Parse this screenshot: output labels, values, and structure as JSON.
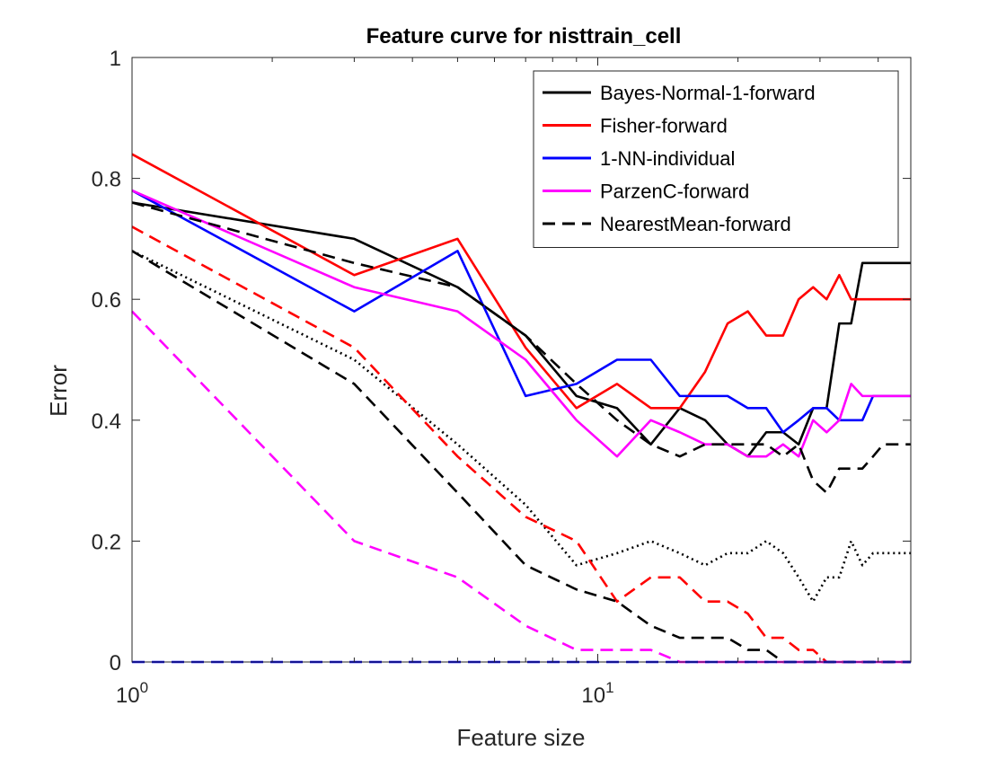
{
  "chart_data": {
    "type": "line",
    "title": "Feature curve for nisttrain_cell",
    "xlabel": "Feature size",
    "ylabel": "Error",
    "xscale": "log",
    "xlim": [
      1,
      47
    ],
    "ylim": [
      0,
      1
    ],
    "x_ticks": [
      {
        "value": 1,
        "base": "10",
        "exp": "0"
      },
      {
        "value": 10,
        "base": "10",
        "exp": "1"
      }
    ],
    "y_ticks": [
      {
        "value": 0,
        "label": "0"
      },
      {
        "value": 0.2,
        "label": "0.2"
      },
      {
        "value": 0.4,
        "label": "0.4"
      },
      {
        "value": 0.6,
        "label": "0.6"
      },
      {
        "value": 0.8,
        "label": "0.8"
      },
      {
        "value": 1,
        "label": "1"
      }
    ],
    "grid": false,
    "legend_position": "top-right",
    "series": [
      {
        "name": "Bayes-Normal-1-forward",
        "color": "#000000",
        "dash": "solid",
        "in_legend": true,
        "x": [
          1,
          3,
          5,
          7,
          9,
          11,
          13,
          15,
          17,
          19,
          21,
          23,
          25,
          27,
          29,
          31,
          33,
          35,
          37,
          39,
          41,
          43,
          45,
          47
        ],
        "y": [
          0.76,
          0.7,
          0.62,
          0.54,
          0.44,
          0.42,
          0.36,
          0.42,
          0.4,
          0.36,
          0.34,
          0.38,
          0.38,
          0.36,
          0.42,
          0.42,
          0.56,
          0.56,
          0.66,
          0.66,
          0.66,
          0.66,
          0.66,
          0.66
        ]
      },
      {
        "name": "Fisher-forward",
        "color": "#ff0000",
        "dash": "solid",
        "in_legend": true,
        "x": [
          1,
          3,
          5,
          7,
          9,
          11,
          13,
          15,
          17,
          19,
          21,
          23,
          25,
          27,
          29,
          31,
          33,
          35,
          37,
          39,
          41,
          43,
          45,
          47
        ],
        "y": [
          0.84,
          0.64,
          0.7,
          0.52,
          0.42,
          0.46,
          0.42,
          0.42,
          0.48,
          0.56,
          0.58,
          0.54,
          0.54,
          0.6,
          0.62,
          0.6,
          0.64,
          0.6,
          0.6,
          0.6,
          0.6,
          0.6,
          0.6,
          0.6
        ]
      },
      {
        "name": "1-NN-individual",
        "color": "#0000ff",
        "dash": "solid",
        "in_legend": true,
        "x": [
          1,
          3,
          5,
          7,
          9,
          11,
          13,
          15,
          17,
          19,
          21,
          23,
          25,
          27,
          29,
          31,
          33,
          35,
          37,
          39,
          41,
          43,
          45,
          47
        ],
        "y": [
          0.78,
          0.58,
          0.68,
          0.44,
          0.46,
          0.5,
          0.5,
          0.44,
          0.44,
          0.44,
          0.42,
          0.42,
          0.38,
          0.4,
          0.42,
          0.42,
          0.4,
          0.4,
          0.4,
          0.44,
          0.44,
          0.44,
          0.44,
          0.44
        ]
      },
      {
        "name": "ParzenC-forward",
        "color": "#ff00ff",
        "dash": "solid",
        "in_legend": true,
        "x": [
          1,
          3,
          5,
          7,
          9,
          11,
          13,
          15,
          17,
          19,
          21,
          23,
          25,
          27,
          29,
          31,
          33,
          35,
          37,
          39,
          41,
          43,
          45,
          47
        ],
        "y": [
          0.78,
          0.62,
          0.58,
          0.5,
          0.4,
          0.34,
          0.4,
          0.38,
          0.36,
          0.36,
          0.34,
          0.34,
          0.36,
          0.34,
          0.4,
          0.38,
          0.4,
          0.46,
          0.44,
          0.44,
          0.44,
          0.44,
          0.44,
          0.44
        ]
      },
      {
        "name": "NearestMean-forward",
        "color": "#000000",
        "dash": "dashed",
        "in_legend": true,
        "x": [
          1,
          3,
          5,
          7,
          9,
          11,
          13,
          15,
          17,
          19,
          21,
          23,
          25,
          27,
          29,
          31,
          33,
          35,
          37,
          39,
          41,
          43,
          45,
          47
        ],
        "y": [
          0.76,
          0.66,
          0.62,
          0.54,
          0.46,
          0.4,
          0.36,
          0.34,
          0.36,
          0.36,
          0.36,
          0.36,
          0.34,
          0.36,
          0.3,
          0.28,
          0.32,
          0.32,
          0.32,
          0.34,
          0.36,
          0.36,
          0.36,
          0.36
        ]
      },
      {
        "name": "",
        "color": "#000000",
        "dash": "dotted",
        "in_legend": false,
        "x": [
          1,
          3,
          5,
          7,
          9,
          11,
          13,
          15,
          17,
          19,
          21,
          23,
          25,
          27,
          29,
          31,
          33,
          35,
          37,
          39,
          41,
          43,
          45,
          47
        ],
        "y": [
          0.68,
          0.5,
          0.36,
          0.26,
          0.16,
          0.18,
          0.2,
          0.18,
          0.16,
          0.18,
          0.18,
          0.2,
          0.18,
          0.14,
          0.1,
          0.14,
          0.14,
          0.2,
          0.16,
          0.18,
          0.18,
          0.18,
          0.18,
          0.18
        ]
      },
      {
        "name": "",
        "color": "#ff0000",
        "dash": "dashed",
        "in_legend": false,
        "x": [
          1,
          3,
          5,
          7,
          9,
          11,
          13,
          15,
          17,
          19,
          21,
          23,
          25,
          27,
          29,
          31,
          33,
          35,
          37,
          39,
          41,
          43,
          45,
          47
        ],
        "y": [
          0.72,
          0.52,
          0.34,
          0.24,
          0.2,
          0.1,
          0.14,
          0.14,
          0.1,
          0.1,
          0.08,
          0.04,
          0.04,
          0.02,
          0.02,
          0.0,
          0.0,
          0.0,
          0.0,
          0.0,
          0.0,
          0.0,
          0.0,
          0.0
        ]
      },
      {
        "name": "",
        "color": "#000000",
        "dash": "dashed",
        "in_legend": false,
        "x": [
          1,
          3,
          5,
          7,
          9,
          11,
          13,
          15,
          17,
          19,
          21,
          23,
          25,
          27,
          29,
          31,
          33,
          35,
          37,
          39,
          41,
          43,
          45,
          47
        ],
        "y": [
          0.68,
          0.46,
          0.28,
          0.16,
          0.12,
          0.1,
          0.06,
          0.04,
          0.04,
          0.04,
          0.02,
          0.02,
          0.0,
          0.0,
          0.0,
          0.0,
          0.0,
          0.0,
          0.0,
          0.0,
          0.0,
          0.0,
          0.0,
          0.0
        ]
      },
      {
        "name": "",
        "color": "#ff00ff",
        "dash": "dashed",
        "in_legend": false,
        "x": [
          1,
          3,
          5,
          7,
          9,
          11,
          13,
          15,
          17,
          19,
          21,
          23,
          25,
          27,
          29,
          31,
          33,
          35,
          37,
          39,
          41,
          43,
          45,
          47
        ],
        "y": [
          0.58,
          0.2,
          0.14,
          0.06,
          0.02,
          0.02,
          0.02,
          0.0,
          0.0,
          0.0,
          0.0,
          0.0,
          0.0,
          0.0,
          0.0,
          0.0,
          0.0,
          0.0,
          0.0,
          0.0,
          0.0,
          0.0,
          0.0,
          0.0
        ]
      },
      {
        "name": "",
        "color": "#0000ff",
        "dash": "dashed",
        "in_legend": false,
        "x": [
          1,
          47
        ],
        "y": [
          0.0,
          0.0
        ]
      }
    ]
  }
}
